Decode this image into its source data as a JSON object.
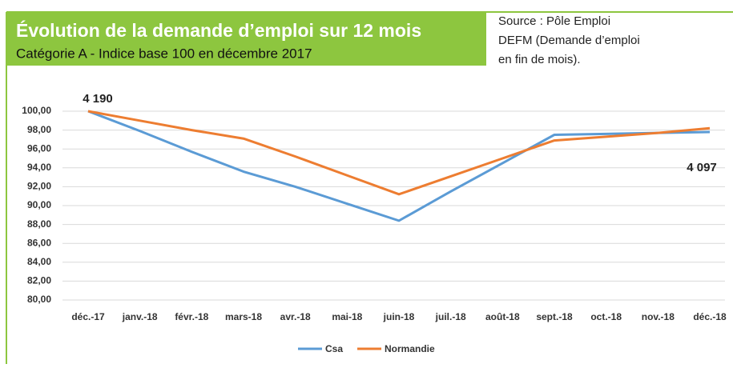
{
  "chart_data": {
    "type": "line",
    "title": "Évolution de la demande d’emploi sur 12 mois",
    "subtitle": "Catégorie A - Indice base 100 en décembre 2017",
    "source": [
      "Source : Pôle Emploi",
      "DEFM (Demande d’emploi",
      "en fin de mois)."
    ],
    "categories": [
      "déc.-17",
      "janv.-18",
      "févr.-18",
      "mars-18",
      "avr.-18",
      "mai-18",
      "juin-18",
      "juil.-18",
      "août-18",
      "sept.-18",
      "oct.-18",
      "nov.-18",
      "déc.-18"
    ],
    "series": [
      {
        "name": "Csa",
        "color": "#5b9bd5",
        "values": [
          100,
          97.9,
          95.7,
          93.6,
          92.0,
          90.2,
          88.4,
          91.5,
          94.5,
          97.5,
          97.6,
          97.7,
          97.8
        ]
      },
      {
        "name": "Normandie",
        "color": "#ed7d31",
        "values": [
          100,
          99.0,
          98.0,
          97.1,
          95.2,
          93.2,
          91.2,
          93.1,
          95.0,
          96.9,
          97.3,
          97.7,
          98.2
        ]
      }
    ],
    "annotations": [
      "4 190",
      "4 097"
    ],
    "ylim": [
      80,
      100
    ],
    "yticks": [
      {
        "value": 80,
        "label": "80,00"
      },
      {
        "value": 82,
        "label": "82,00"
      },
      {
        "value": 84,
        "label": "84,00"
      },
      {
        "value": 86,
        "label": "86,00"
      },
      {
        "value": 88,
        "label": "88,00"
      },
      {
        "value": 90,
        "label": "90,00"
      },
      {
        "value": 92,
        "label": "92,00"
      },
      {
        "value": 94,
        "label": "94,00"
      },
      {
        "value": 96,
        "label": "96,00"
      },
      {
        "value": 98,
        "label": "98,00"
      },
      {
        "value": 100,
        "label": "100,00"
      }
    ],
    "grid": true
  }
}
